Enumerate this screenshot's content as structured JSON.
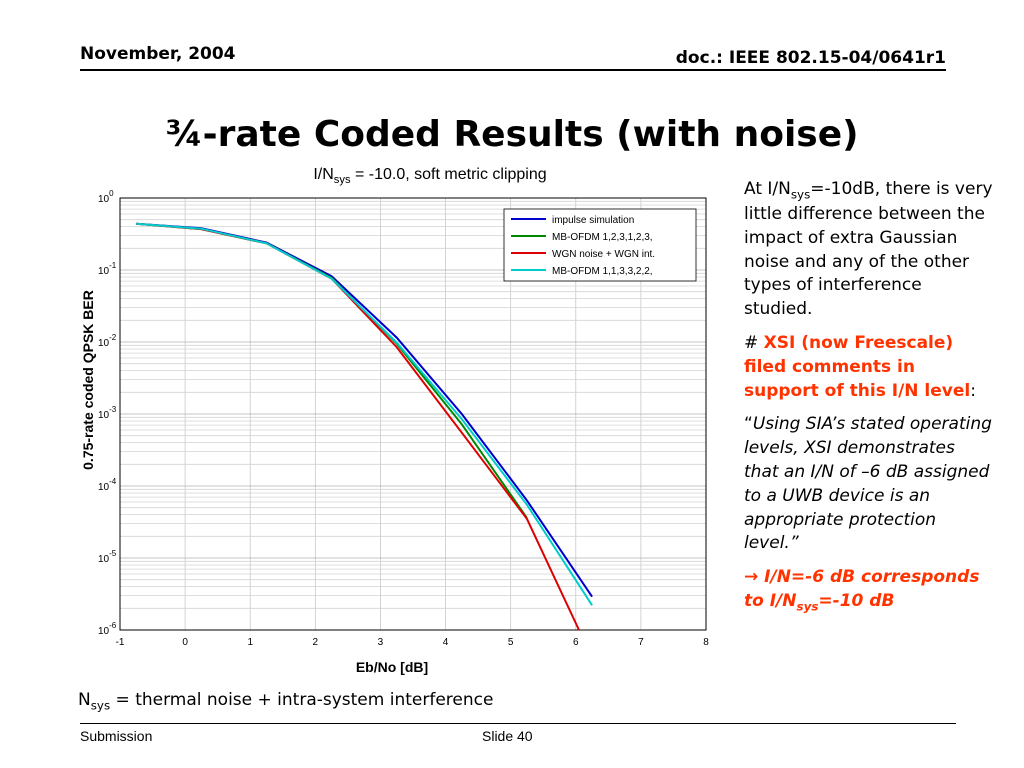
{
  "header": {
    "date": "November, 2004",
    "doc": "doc.: IEEE 802.15-04/0641r1"
  },
  "slide_title": "¾-rate Coded Results (with noise)",
  "chart_title": {
    "prefix": "I/N",
    "sub": "sys",
    "suffix": " = -10.0, soft metric clipping"
  },
  "side": {
    "p1_a": "At I/N",
    "p1_sub": "sys",
    "p1_b": "=-10dB, there is very little difference between the impact of extra Gaussian noise and any of the other types of interference studied.",
    "p2_hash": "# ",
    "p2_red": "XSI (now Freescale) filed comments in support of this I/N level",
    "p2_tail": ":",
    "p3_quote": "Using SIA’s stated operating levels, XSI demonstrates that an I/N of –6 dB assigned to a UWB device is an appropriate protection level.",
    "p4_arrow": "→",
    "p4_text": "I/N=-6 dB corresponds to I/N",
    "p4_sub": "sys",
    "p4_tail": "=-10 dB"
  },
  "footnote": {
    "a": "N",
    "sub": "sys",
    "b": " = thermal noise + intra-system interference"
  },
  "footer": {
    "left": "Submission",
    "center": "Slide 40"
  },
  "chart_data": {
    "type": "line",
    "xlabel": "Eb/No [dB]",
    "ylabel": "0.75-rate coded QPSK BER",
    "xlim": [
      -1,
      8
    ],
    "ylim": [
      1e-06,
      1
    ],
    "yscale": "log",
    "xticks": [
      "-1",
      "0",
      "1",
      "2",
      "3",
      "4",
      "5",
      "6",
      "7",
      "8"
    ],
    "yticks": [
      {
        "base": "10",
        "exp": "0"
      },
      {
        "base": "10",
        "exp": "-1"
      },
      {
        "base": "10",
        "exp": "-2"
      },
      {
        "base": "10",
        "exp": "-3"
      },
      {
        "base": "10",
        "exp": "-4"
      },
      {
        "base": "10",
        "exp": "-5"
      },
      {
        "base": "10",
        "exp": "-6"
      }
    ],
    "grid": true,
    "legend_position": "top-right",
    "series": [
      {
        "name": "impulse simulation",
        "color": "#0000cc",
        "x": [
          -0.75,
          0.25,
          1.25,
          2.25,
          3.25,
          4.25,
          5.25,
          6.25
        ],
        "y": [
          0.44,
          0.38,
          0.24,
          0.082,
          0.0115,
          0.001,
          6.3e-05,
          2.9e-06
        ]
      },
      {
        "name": "MB-OFDM 1,2,3,1,2,3,",
        "color": "#008800",
        "x": [
          -0.75,
          0.25,
          1.25,
          2.25,
          3.25,
          4.25,
          5.25
        ],
        "y": [
          0.44,
          0.37,
          0.235,
          0.078,
          0.0095,
          0.00072,
          3.6e-05
        ]
      },
      {
        "name": "WGN noise + WGN int.",
        "color": "#dd0000",
        "x": [
          -0.75,
          0.25,
          1.25,
          2.25,
          3.25,
          4.25,
          5.25,
          6.05
        ],
        "y": [
          0.44,
          0.37,
          0.235,
          0.076,
          0.0085,
          0.00055,
          3.5e-05,
          1e-06
        ]
      },
      {
        "name": "MB-OFDM 1,1,3,3,2,2,",
        "color": "#00cccc",
        "x": [
          -0.75,
          0.25,
          1.25,
          2.25,
          3.25,
          4.25,
          5.25,
          6.25
        ],
        "y": [
          0.44,
          0.375,
          0.235,
          0.076,
          0.0098,
          0.00085,
          5.5e-05,
          2.2e-06
        ]
      }
    ]
  }
}
